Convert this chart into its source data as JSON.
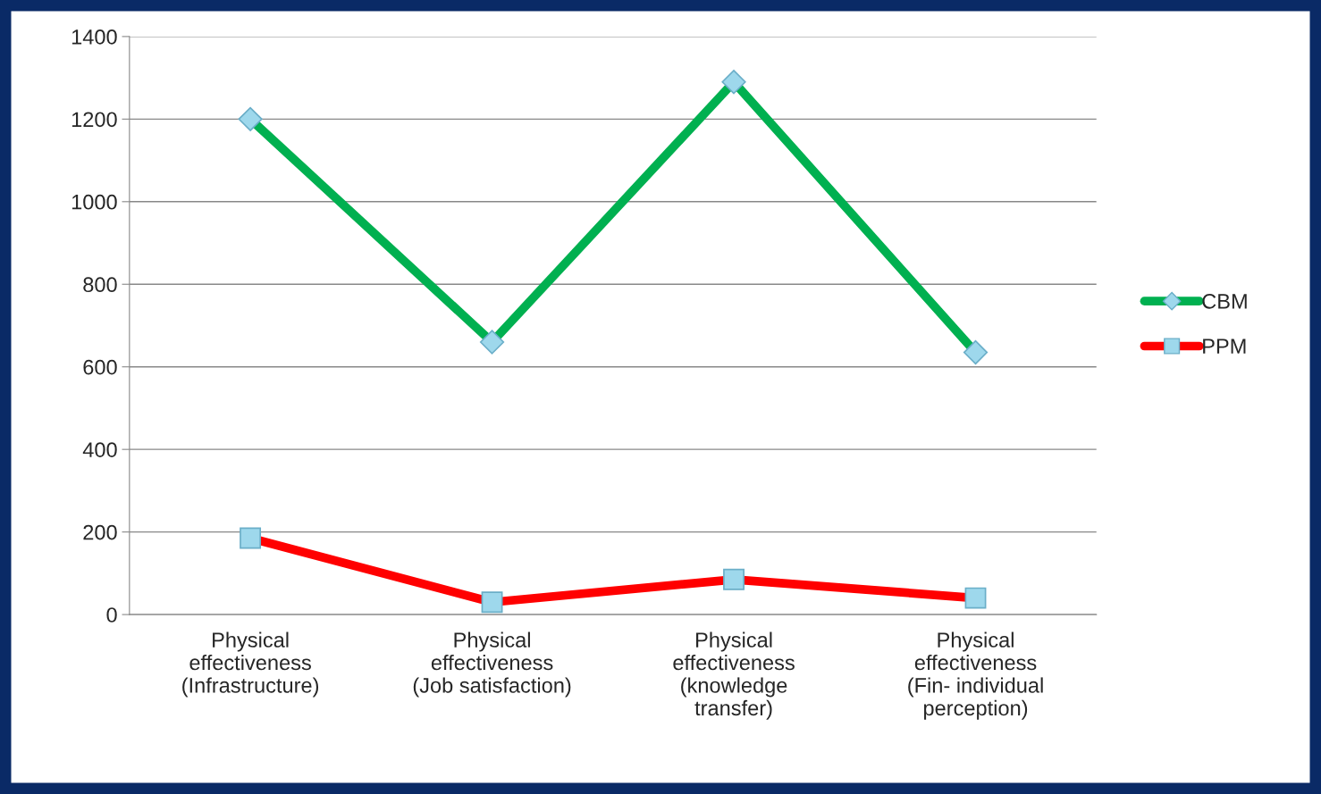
{
  "chart_data": {
    "type": "line",
    "categories": [
      "Physical\neffectiveness\n(Infrastructure)",
      "Physical\neffectiveness\n(Job satisfaction)",
      "Physical\neffectiveness\n(knowledge\ntransfer)",
      "Physical\neffectiveness\n(Fin- individual\nperception)"
    ],
    "series": [
      {
        "name": "CBM",
        "color": "#00b050",
        "marker": "diamond",
        "values": [
          1200,
          660,
          1290,
          635
        ]
      },
      {
        "name": "PPM",
        "color": "#ff0000",
        "marker": "square",
        "values": [
          185,
          30,
          85,
          40
        ]
      }
    ],
    "ylim": [
      0,
      1400
    ],
    "yticks": [
      0,
      200,
      400,
      600,
      800,
      1000,
      1200,
      1400
    ],
    "grid": "y",
    "legend": "right"
  }
}
